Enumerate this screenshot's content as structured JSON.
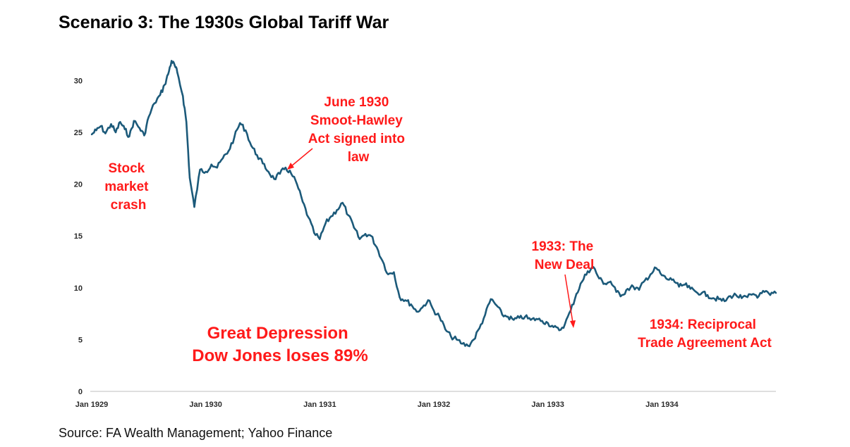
{
  "title": "Scenario 3: The 1930s Global Tariff War",
  "source": "Source: FA Wealth Management; Yahoo Finance",
  "colors": {
    "line": "#1c5a7a",
    "annotation": "#ff1a1a",
    "axis": "#bfbfbf"
  },
  "chart_data": {
    "type": "line",
    "xlabel": "",
    "ylabel": "",
    "ylim": [
      0,
      33
    ],
    "xlim": [
      1929.0,
      1935.0
    ],
    "y_ticks": [
      "0",
      "5",
      "10",
      "15",
      "20",
      "25",
      "30"
    ],
    "x_ticks": [
      "Jan 1929",
      "Jan 1930",
      "Jan 1931",
      "Jan 1932",
      "Jan 1933",
      "Jan 1934"
    ],
    "grid": false,
    "legend": "none",
    "series": [
      {
        "x": [
          1929.0,
          1929.04,
          1929.08,
          1929.12,
          1929.17,
          1929.21,
          1929.25,
          1929.29,
          1929.33,
          1929.37,
          1929.42,
          1929.46,
          1929.5,
          1929.55,
          1929.6,
          1929.64,
          1929.67,
          1929.7,
          1929.73,
          1929.75,
          1929.8,
          1929.83,
          1929.86,
          1929.9,
          1929.95,
          1930.0,
          1930.05,
          1930.1,
          1930.15,
          1930.2,
          1930.25,
          1930.3,
          1930.35,
          1930.4,
          1930.45,
          1930.5,
          1930.55,
          1930.6,
          1930.65,
          1930.7,
          1930.75,
          1930.8,
          1930.85,
          1930.9,
          1930.95,
          1931.0,
          1931.05,
          1931.1,
          1931.15,
          1931.2,
          1931.25,
          1931.3,
          1931.35,
          1931.4,
          1931.45,
          1931.5,
          1931.55,
          1931.6,
          1931.65,
          1931.7,
          1931.75,
          1931.8,
          1931.85,
          1931.9,
          1931.95,
          1932.0,
          1932.05,
          1932.1,
          1932.15,
          1932.2,
          1932.25,
          1932.3,
          1932.35,
          1932.4,
          1932.45,
          1932.5,
          1932.55,
          1932.6,
          1932.65,
          1932.7,
          1932.75,
          1932.8,
          1932.85,
          1932.9,
          1932.95,
          1933.0,
          1933.05,
          1933.1,
          1933.15,
          1933.2,
          1933.25,
          1933.3,
          1933.35,
          1933.4,
          1933.45,
          1933.5,
          1933.55,
          1933.6,
          1933.65,
          1933.7,
          1933.75,
          1933.8,
          1933.85,
          1933.9,
          1933.95,
          1934.0,
          1934.05,
          1934.1,
          1934.15,
          1934.2,
          1934.25,
          1934.3,
          1934.35,
          1934.4,
          1934.45,
          1934.5,
          1934.55,
          1934.6,
          1934.65,
          1934.7,
          1934.75,
          1934.8,
          1934.85,
          1934.9,
          1934.95,
          1935.0
        ],
        "values": [
          24.8,
          25.2,
          25.6,
          24.9,
          25.8,
          25.0,
          26.0,
          25.3,
          24.6,
          26.1,
          25.4,
          24.7,
          26.5,
          27.8,
          28.6,
          29.6,
          30.6,
          31.9,
          31.4,
          30.8,
          28.5,
          26.0,
          20.6,
          17.8,
          21.4,
          21.2,
          21.9,
          21.6,
          22.5,
          23.2,
          24.5,
          25.9,
          25.2,
          23.7,
          22.8,
          22.0,
          21.2,
          20.5,
          21.0,
          21.6,
          21.0,
          20.0,
          18.3,
          16.8,
          15.3,
          14.7,
          16.2,
          16.9,
          17.5,
          18.2,
          17.0,
          15.8,
          14.7,
          15.2,
          15.0,
          13.9,
          12.6,
          11.3,
          11.5,
          9.1,
          8.8,
          8.4,
          7.7,
          8.1,
          8.8,
          7.8,
          7.2,
          6.0,
          5.3,
          5.0,
          4.6,
          4.4,
          5.0,
          6.1,
          7.4,
          8.9,
          8.3,
          7.4,
          7.2,
          6.9,
          7.1,
          7.2,
          6.9,
          7.0,
          6.8,
          6.6,
          6.2,
          5.9,
          6.5,
          7.8,
          9.4,
          10.6,
          11.6,
          12.0,
          10.9,
          10.4,
          10.6,
          9.6,
          9.3,
          9.9,
          10.1,
          9.8,
          10.7,
          11.3,
          11.9,
          11.2,
          10.8,
          10.8,
          10.1,
          10.3,
          9.9,
          9.6,
          9.5,
          9.3,
          9.0,
          8.9,
          8.7,
          9.2,
          9.3,
          9.0,
          9.1,
          9.4,
          9.2,
          9.6,
          9.3,
          9.5
        ]
      }
    ],
    "annotations": [
      {
        "id": "crash",
        "lines": [
          "Stock",
          "market",
          "crash"
        ]
      },
      {
        "id": "smoot",
        "lines": [
          "June 1930",
          "Smoot-Hawley",
          "Act signed into",
          "law"
        ]
      },
      {
        "id": "depression",
        "lines": [
          "Great Depression",
          "Dow Jones loses 89%"
        ]
      },
      {
        "id": "newdeal",
        "lines": [
          "1933: The",
          "New Deal"
        ]
      },
      {
        "id": "rtaa",
        "lines": [
          "1934: Reciprocal",
          "Trade Agreement Act"
        ]
      }
    ]
  }
}
